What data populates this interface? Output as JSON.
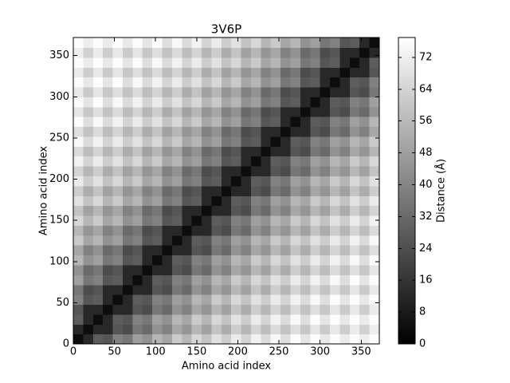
{
  "chart_data": {
    "type": "heatmap",
    "title": "3V6P",
    "xlabel": "Amino acid index",
    "ylabel": "Amino acid index",
    "colorbar_label": "Distance (Å)",
    "colormap": "gray",
    "xlim": [
      0,
      372
    ],
    "ylim": [
      0,
      372
    ],
    "xticks": [
      0,
      50,
      100,
      150,
      200,
      250,
      300,
      350
    ],
    "yticks": [
      0,
      50,
      100,
      150,
      200,
      250,
      300,
      350
    ],
    "clim": [
      0,
      77
    ],
    "cticks": [
      0,
      8,
      16,
      24,
      32,
      40,
      48,
      56,
      64,
      72
    ],
    "z": [
      [
        4,
        12,
        28,
        26,
        39,
        36,
        48,
        44,
        55,
        50,
        61,
        55,
        65,
        59,
        68,
        62,
        71,
        64,
        73,
        66,
        75,
        67,
        76,
        69,
        76,
        70,
        76,
        71,
        76,
        72,
        76
      ],
      [
        12,
        4,
        12,
        12,
        26,
        23,
        36,
        32,
        44,
        39,
        50,
        45,
        55,
        49,
        59,
        52,
        62,
        55,
        64,
        57,
        66,
        59,
        67,
        60,
        69,
        61,
        70,
        62,
        71,
        63,
        72
      ],
      [
        28,
        12,
        4,
        12,
        28,
        26,
        39,
        36,
        48,
        44,
        55,
        50,
        61,
        55,
        65,
        59,
        68,
        62,
        71,
        64,
        73,
        66,
        75,
        67,
        76,
        69,
        76,
        70,
        76,
        71,
        76
      ],
      [
        26,
        12,
        12,
        4,
        12,
        12,
        26,
        23,
        36,
        32,
        44,
        39,
        50,
        45,
        55,
        49,
        59,
        52,
        62,
        55,
        64,
        57,
        66,
        59,
        67,
        60,
        69,
        61,
        70,
        62,
        71
      ],
      [
        39,
        26,
        28,
        12,
        4,
        12,
        28,
        26,
        39,
        36,
        48,
        44,
        55,
        50,
        61,
        55,
        65,
        59,
        68,
        62,
        71,
        64,
        73,
        66,
        75,
        67,
        76,
        69,
        76,
        70,
        76
      ],
      [
        36,
        23,
        26,
        12,
        12,
        4,
        12,
        12,
        26,
        23,
        36,
        32,
        44,
        39,
        50,
        45,
        55,
        49,
        59,
        52,
        62,
        55,
        64,
        57,
        66,
        59,
        67,
        60,
        69,
        61,
        70
      ],
      [
        48,
        36,
        39,
        26,
        28,
        12,
        4,
        12,
        28,
        26,
        39,
        36,
        48,
        44,
        55,
        50,
        61,
        55,
        65,
        59,
        68,
        62,
        71,
        64,
        73,
        66,
        75,
        67,
        76,
        69,
        76
      ],
      [
        44,
        32,
        36,
        23,
        26,
        12,
        12,
        4,
        12,
        12,
        26,
        23,
        36,
        32,
        44,
        39,
        50,
        45,
        55,
        49,
        59,
        52,
        62,
        55,
        64,
        57,
        66,
        59,
        67,
        60,
        69
      ],
      [
        55,
        44,
        48,
        36,
        39,
        26,
        28,
        12,
        4,
        12,
        28,
        26,
        39,
        36,
        48,
        44,
        55,
        50,
        61,
        55,
        65,
        59,
        68,
        62,
        71,
        64,
        73,
        66,
        75,
        67,
        76
      ],
      [
        50,
        39,
        44,
        32,
        36,
        23,
        26,
        12,
        12,
        4,
        12,
        12,
        26,
        23,
        36,
        32,
        44,
        39,
        50,
        45,
        55,
        49,
        59,
        52,
        62,
        55,
        64,
        57,
        66,
        59,
        67
      ],
      [
        61,
        50,
        55,
        44,
        48,
        36,
        39,
        26,
        28,
        12,
        4,
        12,
        28,
        26,
        39,
        36,
        48,
        44,
        55,
        50,
        61,
        55,
        65,
        59,
        68,
        62,
        71,
        64,
        73,
        66,
        75
      ],
      [
        55,
        45,
        50,
        39,
        44,
        32,
        36,
        23,
        26,
        12,
        12,
        4,
        12,
        12,
        26,
        23,
        36,
        32,
        44,
        39,
        50,
        45,
        55,
        49,
        59,
        52,
        62,
        55,
        64,
        57,
        66
      ],
      [
        65,
        55,
        61,
        50,
        55,
        44,
        48,
        36,
        39,
        26,
        28,
        12,
        4,
        12,
        28,
        26,
        39,
        36,
        48,
        44,
        55,
        50,
        61,
        55,
        65,
        59,
        68,
        62,
        71,
        64,
        73
      ],
      [
        59,
        49,
        55,
        45,
        50,
        39,
        44,
        32,
        36,
        23,
        26,
        12,
        12,
        4,
        12,
        12,
        26,
        23,
        36,
        32,
        44,
        39,
        50,
        45,
        55,
        49,
        59,
        52,
        62,
        55,
        64
      ],
      [
        68,
        59,
        65,
        55,
        61,
        50,
        55,
        44,
        48,
        36,
        39,
        26,
        28,
        12,
        4,
        12,
        28,
        26,
        39,
        36,
        48,
        44,
        55,
        50,
        61,
        55,
        65,
        59,
        68,
        62,
        71
      ],
      [
        62,
        52,
        59,
        49,
        55,
        45,
        50,
        39,
        44,
        32,
        36,
        23,
        26,
        12,
        12,
        4,
        12,
        12,
        26,
        23,
        36,
        32,
        44,
        39,
        50,
        45,
        55,
        49,
        59,
        52,
        62
      ],
      [
        71,
        62,
        68,
        59,
        65,
        55,
        61,
        50,
        55,
        44,
        48,
        36,
        39,
        26,
        28,
        12,
        4,
        12,
        28,
        26,
        39,
        36,
        48,
        44,
        55,
        50,
        61,
        55,
        65,
        59,
        68
      ],
      [
        64,
        55,
        62,
        52,
        59,
        49,
        55,
        45,
        50,
        39,
        44,
        32,
        36,
        23,
        26,
        12,
        12,
        4,
        12,
        12,
        26,
        23,
        36,
        32,
        44,
        39,
        50,
        45,
        55,
        49,
        59
      ],
      [
        73,
        64,
        71,
        62,
        68,
        59,
        65,
        55,
        61,
        50,
        55,
        44,
        48,
        36,
        39,
        26,
        28,
        12,
        4,
        12,
        28,
        26,
        39,
        36,
        48,
        44,
        55,
        50,
        61,
        55,
        65
      ],
      [
        66,
        57,
        64,
        55,
        62,
        52,
        59,
        49,
        55,
        45,
        50,
        39,
        44,
        32,
        36,
        23,
        26,
        12,
        12,
        4,
        12,
        12,
        26,
        23,
        36,
        32,
        44,
        39,
        50,
        45,
        55
      ],
      [
        75,
        66,
        73,
        64,
        71,
        62,
        68,
        59,
        65,
        55,
        61,
        50,
        55,
        44,
        48,
        36,
        39,
        26,
        28,
        12,
        4,
        12,
        28,
        26,
        39,
        36,
        48,
        44,
        55,
        50,
        61
      ],
      [
        67,
        59,
        66,
        57,
        64,
        55,
        62,
        52,
        59,
        49,
        55,
        45,
        50,
        39,
        44,
        32,
        36,
        23,
        26,
        12,
        12,
        4,
        12,
        12,
        26,
        23,
        36,
        32,
        44,
        39,
        50
      ],
      [
        76,
        67,
        75,
        66,
        73,
        64,
        71,
        62,
        68,
        59,
        65,
        55,
        61,
        50,
        55,
        44,
        48,
        36,
        39,
        26,
        28,
        12,
        4,
        12,
        28,
        26,
        39,
        36,
        48,
        44,
        55
      ],
      [
        69,
        60,
        67,
        59,
        66,
        57,
        64,
        55,
        62,
        52,
        59,
        49,
        55,
        45,
        50,
        39,
        44,
        32,
        36,
        23,
        26,
        12,
        12,
        4,
        12,
        12,
        26,
        23,
        36,
        32,
        44
      ],
      [
        76,
        69,
        76,
        67,
        75,
        66,
        73,
        64,
        71,
        62,
        68,
        59,
        65,
        55,
        61,
        50,
        55,
        44,
        48,
        36,
        39,
        26,
        28,
        12,
        4,
        12,
        28,
        26,
        39,
        36,
        48
      ],
      [
        70,
        61,
        69,
        60,
        67,
        59,
        66,
        57,
        64,
        55,
        62,
        52,
        59,
        49,
        55,
        45,
        50,
        39,
        44,
        32,
        36,
        23,
        26,
        12,
        12,
        4,
        12,
        12,
        26,
        23,
        36
      ],
      [
        76,
        70,
        76,
        69,
        76,
        67,
        75,
        66,
        73,
        64,
        71,
        62,
        68,
        59,
        65,
        55,
        61,
        50,
        55,
        44,
        48,
        36,
        39,
        26,
        28,
        12,
        4,
        12,
        28,
        26,
        39
      ],
      [
        71,
        62,
        70,
        61,
        69,
        60,
        67,
        59,
        66,
        57,
        64,
        55,
        62,
        52,
        59,
        49,
        55,
        45,
        50,
        39,
        44,
        32,
        36,
        23,
        26,
        12,
        12,
        4,
        12,
        12,
        26
      ],
      [
        76,
        71,
        76,
        70,
        76,
        69,
        76,
        67,
        75,
        66,
        73,
        64,
        71,
        62,
        68,
        59,
        65,
        55,
        61,
        50,
        55,
        44,
        48,
        36,
        39,
        26,
        28,
        12,
        4,
        12,
        28
      ],
      [
        72,
        63,
        71,
        62,
        70,
        61,
        69,
        60,
        67,
        59,
        66,
        57,
        64,
        55,
        62,
        52,
        59,
        49,
        55,
        45,
        50,
        39,
        44,
        32,
        36,
        23,
        26,
        12,
        12,
        4,
        12
      ],
      [
        76,
        72,
        76,
        71,
        76,
        70,
        76,
        69,
        76,
        67,
        75,
        66,
        73,
        64,
        71,
        62,
        68,
        59,
        65,
        55,
        61,
        50,
        55,
        44,
        48,
        36,
        39,
        26,
        28,
        12,
        4
      ]
    ]
  }
}
